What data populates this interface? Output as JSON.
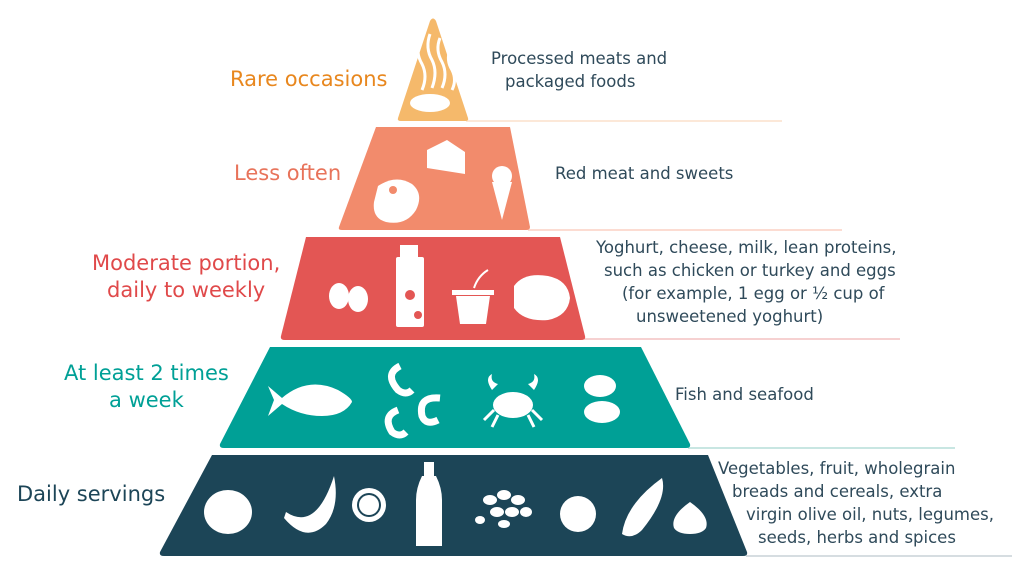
{
  "colors": {
    "tier1": "#f5b96b",
    "tier2": "#f28b6c",
    "tier3": "#e35654",
    "tier4": "#00a096",
    "tier5": "#1c4557",
    "label1": "#e8871e",
    "label2": "#e8735a",
    "label3": "#e0494a",
    "label4": "#00a096",
    "label5": "#1c4557",
    "description": "#2f4a5a"
  },
  "tiers": [
    {
      "label": "Rare occasions",
      "description": [
        "Processed meats and",
        "packaged foods"
      ],
      "icons": [
        "bacon-icon",
        "sausage-icon"
      ]
    },
    {
      "label": "Less often",
      "description": [
        "Red meat and sweets"
      ],
      "icons": [
        "steak-icon",
        "cake-icon",
        "ice-cream-icon"
      ]
    },
    {
      "label_lines": [
        "Moderate portion,",
        "daily to weekly"
      ],
      "description": [
        "Yoghurt, cheese, milk, lean proteins,",
        "such as chicken or turkey and eggs",
        "(for example, 1 egg or ½ cup of",
        "unsweetened yoghurt)"
      ],
      "icons": [
        "eggs-icon",
        "milk-carton-icon",
        "yoghurt-icon",
        "chicken-icon"
      ]
    },
    {
      "label_lines": [
        "At least 2 times",
        "a week"
      ],
      "description": [
        "Fish and seafood"
      ],
      "icons": [
        "fish-icon",
        "shrimp-icon",
        "crab-icon",
        "oyster-icon"
      ]
    },
    {
      "label": "Daily servings",
      "description": [
        "Vegetables, fruit, wholegrain",
        "breads and cereals, extra",
        "virgin olive oil, nuts, legumes,",
        "seeds, herbs and spices"
      ],
      "icons": [
        "bread-icon",
        "banana-icon",
        "citrus-icon",
        "olive-oil-icon",
        "nuts-icon",
        "tomato-icon",
        "corn-icon",
        "garlic-icon"
      ]
    }
  ]
}
